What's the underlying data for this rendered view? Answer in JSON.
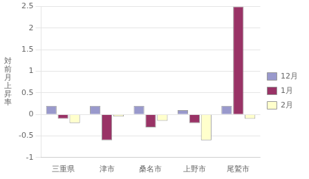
{
  "chart_data": {
    "type": "bar",
    "categories": [
      "三重県",
      "津市",
      "桑名市",
      "上野市",
      "尾鷲市"
    ],
    "series": [
      {
        "name": "12月",
        "color": "#9999cc",
        "values": [
          0.2,
          0.2,
          0.2,
          0.1,
          0.2
        ]
      },
      {
        "name": "1月",
        "color": "#993366",
        "values": [
          -0.1,
          -0.6,
          -0.3,
          -0.2,
          2.5
        ]
      },
      {
        "name": "2月",
        "color": "#ffffcc",
        "values": [
          -0.2,
          -0.05,
          -0.15,
          -0.6,
          -0.1
        ]
      }
    ],
    "ylabel": "対\n前\n月\n上\n昇\n率",
    "ylim": [
      -1.0,
      2.5
    ],
    "yticks": [
      -1,
      -0.5,
      0,
      0.5,
      1,
      1.5,
      2,
      2.5
    ],
    "grid": true,
    "legend": "right"
  }
}
